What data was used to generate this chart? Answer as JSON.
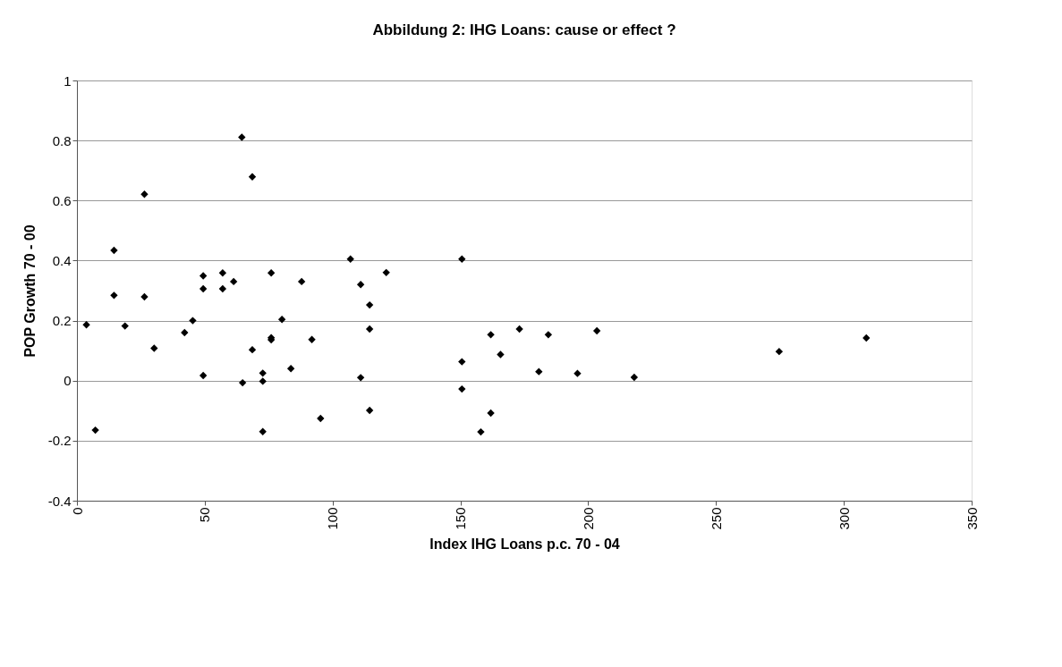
{
  "chart_data": {
    "type": "scatter",
    "title": "Abbildung 2: IHG Loans: cause or effect ?",
    "xlabel": "Index IHG Loans p.c. 70 - 04",
    "ylabel": "POP Growth 70 - 00",
    "x": [
      3.7,
      7.2,
      14.5,
      14.5,
      18.8,
      26.4,
      26.4,
      30.2,
      42.1,
      45.3,
      49.4,
      49.4,
      49.4,
      57.0,
      57.0,
      61.3,
      64.5,
      64.8,
      68.6,
      68.6,
      72.7,
      72.7,
      72.7,
      76.0,
      76.0,
      76.0,
      80.2,
      83.7,
      87.9,
      91.9,
      95.3,
      107.0,
      111.0,
      111.0,
      114.5,
      114.5,
      114.5,
      121.0,
      150.6,
      150.6,
      150.6,
      158.0,
      161.9,
      161.9,
      165.7,
      173.1,
      180.7,
      184.4,
      195.8,
      203.4,
      218.0,
      274.7,
      308.8
    ],
    "series": [
      {
        "color": "#000000",
        "values": [
          0.186,
          -0.165,
          0.434,
          0.284,
          0.182,
          0.621,
          0.279,
          0.108,
          0.16,
          0.2,
          0.349,
          0.306,
          0.017,
          0.359,
          0.306,
          0.33,
          0.811,
          -0.007,
          0.679,
          0.103,
          0.025,
          -0.002,
          -0.17,
          0.359,
          0.143,
          0.136,
          0.204,
          0.04,
          0.33,
          0.137,
          -0.126,
          0.405,
          0.32,
          0.01,
          0.252,
          0.172,
          -0.099,
          0.36,
          0.405,
          0.063,
          -0.028,
          -0.171,
          0.153,
          -0.108,
          0.087,
          0.172,
          0.03,
          0.153,
          0.024,
          0.166,
          0.011,
          0.097,
          0.142
        ]
      }
    ],
    "marker": "diamond",
    "xlim": [
      0,
      350
    ],
    "ylim": [
      -0.4,
      1
    ],
    "xticks": [
      0,
      50,
      100,
      150,
      200,
      250,
      300,
      350
    ],
    "yticks": [
      -0.4,
      -0.2,
      0,
      0.2,
      0.4,
      0.6,
      0.8,
      1
    ],
    "grid": "y",
    "legend": false
  }
}
